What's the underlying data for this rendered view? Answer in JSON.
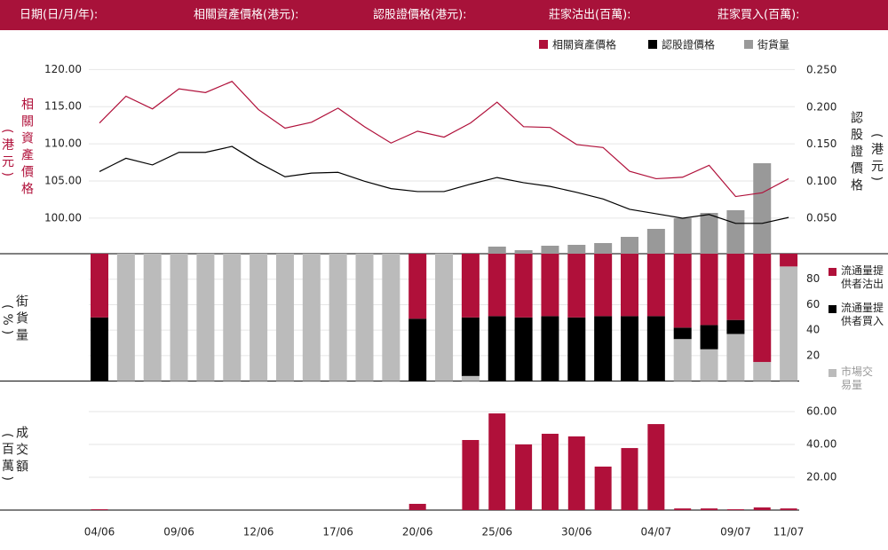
{
  "header": [
    "日期(日/月/年):",
    "相關資產價格(港元):",
    "認股證價格(港元):",
    "莊家沽出(百萬):",
    "莊家買入(百萬):"
  ],
  "chart_data": [
    {
      "type": "line",
      "ylabel": "相關資產價格",
      "ylabel_unit": "(港元)",
      "y2label": "認股證價格",
      "y2label_unit": "(港元)",
      "ylim": [
        95.2,
        121
      ],
      "yticks": [
        {
          "value": 100,
          "label": "100.00"
        },
        {
          "value": 105,
          "label": "105.00"
        },
        {
          "value": 110,
          "label": "110.00"
        },
        {
          "value": 115,
          "label": "115.00"
        },
        {
          "value": 120,
          "label": "120.00"
        }
      ],
      "y2lim": [
        0.002,
        0.261
      ],
      "y2ticks": [
        {
          "value": 0.05,
          "label": "0.050"
        },
        {
          "value": 0.1,
          "label": "0.100"
        },
        {
          "value": 0.15,
          "label": "0.150"
        },
        {
          "value": 0.2,
          "label": "0.200"
        },
        {
          "value": 0.25,
          "label": "0.250"
        }
      ],
      "grid": true,
      "series": [
        {
          "name": "相關資產價格",
          "color": "#b0103a",
          "values": [
            112.8,
            116.4,
            114.7,
            117.4,
            116.9,
            118.4,
            114.6,
            112.1,
            112.9,
            114.8,
            112.3,
            110.1,
            111.7,
            110.9,
            112.8,
            115.6,
            112.3,
            112.2,
            109.9,
            109.5,
            106.3,
            105.3,
            105.5,
            107.1,
            102.9,
            103.4,
            105.3
          ]
        },
        {
          "name": "認股證價格",
          "color": "#000000",
          "axis": "y2",
          "values": [
            0.113,
            0.131,
            0.122,
            0.139,
            0.139,
            0.147,
            0.125,
            0.106,
            0.111,
            0.112,
            0.1,
            0.09,
            0.086,
            0.086,
            0.096,
            0.105,
            0.098,
            0.093,
            0.085,
            0.076,
            0.062,
            0.056,
            0.05,
            0.055,
            0.043,
            0.043,
            0.051
          ]
        },
        {
          "name": "街貨量",
          "color": "#999999",
          "type": "bar",
          "values": [
            null,
            null,
            null,
            null,
            null,
            null,
            null,
            null,
            null,
            null,
            null,
            null,
            null,
            null,
            null,
            8,
            4,
            9,
            10,
            12,
            19,
            28,
            40,
            46,
            49,
            102,
            null
          ]
        }
      ]
    },
    {
      "type": "bar",
      "stacked": true,
      "ylabel": "街貨量",
      "ylabel_unit": "(%)",
      "ylim": [
        0,
        100
      ],
      "yticks": [
        20,
        40,
        60,
        80
      ],
      "grid": true,
      "series": [
        {
          "name": "流通量提供者沽出",
          "color": "#b0103a",
          "values": [
            50,
            0,
            0,
            0,
            0,
            0,
            0,
            0,
            0,
            0,
            0,
            0,
            51,
            0,
            50,
            49,
            50,
            49,
            50,
            49,
            49,
            49,
            58,
            56,
            52,
            85,
            10
          ]
        },
        {
          "name": "流通量提供者買入",
          "color": "#000000",
          "values": [
            50,
            0,
            0,
            0,
            0,
            0,
            0,
            0,
            0,
            0,
            0,
            0,
            49,
            0,
            46,
            51,
            50,
            51,
            50,
            51,
            51,
            51,
            9,
            19,
            11,
            0,
            0
          ]
        },
        {
          "name": "市場交易量",
          "color": "#bbbbbb",
          "values": [
            0,
            100,
            100,
            100,
            100,
            100,
            100,
            100,
            100,
            100,
            100,
            100,
            0,
            100,
            4,
            0,
            0,
            0,
            0,
            0,
            0,
            0,
            33,
            25,
            37,
            15,
            90
          ]
        }
      ]
    },
    {
      "type": "bar",
      "ylabel": "成交額",
      "ylabel_unit": "(百萬)",
      "ylim": [
        0,
        70
      ],
      "yticks": [
        {
          "value": 20,
          "label": "20.00"
        },
        {
          "value": 40,
          "label": "40.00"
        },
        {
          "value": 60,
          "label": "60.00"
        }
      ],
      "grid": true,
      "color": "#b0103a",
      "categories": [
        "04/06",
        null,
        null,
        "09/06",
        null,
        null,
        "12/06",
        null,
        null,
        "17/06",
        null,
        null,
        "20/06",
        null,
        null,
        "25/06",
        null,
        null,
        "30/06",
        null,
        null,
        "04/07",
        null,
        null,
        "09/07",
        null,
        "11/07"
      ],
      "values": [
        0.5,
        0,
        0,
        0,
        0,
        0,
        0,
        0,
        0,
        0,
        0,
        0,
        3.8,
        0,
        42.7,
        58.9,
        40,
        46.5,
        44.9,
        26.5,
        37.8,
        52.4,
        1,
        1,
        0.5,
        1.6,
        1
      ]
    }
  ]
}
